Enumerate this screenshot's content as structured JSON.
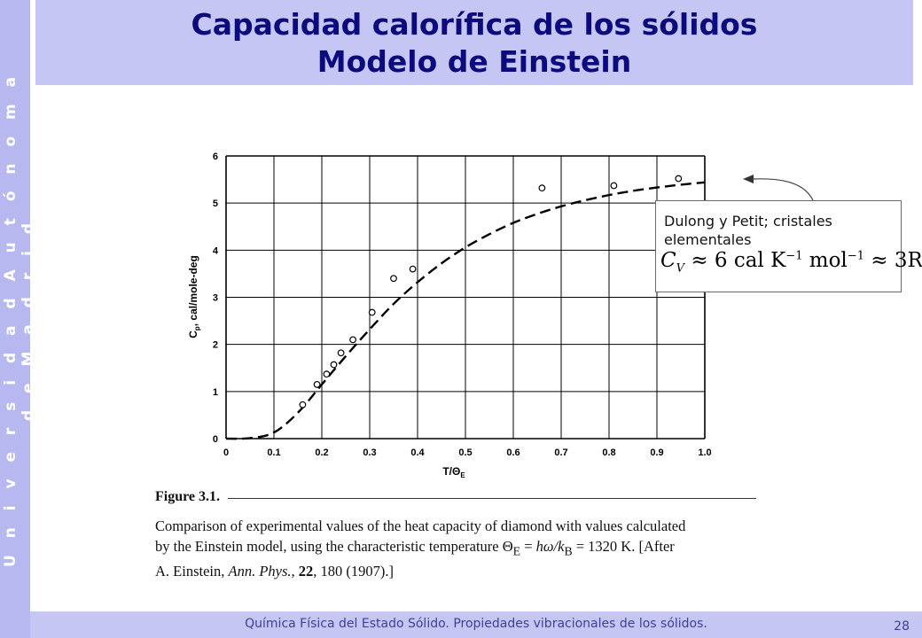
{
  "side_text": "U n i v e r s i d a d   A u t ó n o m a   d e   M a d r i d",
  "title": {
    "line1": "Capacidad calorífica de los sólidos",
    "line2": "Modelo de Einstein"
  },
  "footer": {
    "text": "Química Física del Estado Sólido. Propiedades vibracionales de los sólidos.",
    "page": "28"
  },
  "callout": {
    "line1": "Dulong y Petit; cristales",
    "line2": "elementales",
    "formula": {
      "cv": "C",
      "cv_sub": "V",
      "approx1": "≈ 6 cal K",
      "exp1": "−1",
      "mol": " mol",
      "exp2": "−1",
      "approx2": " ≈ 3R"
    }
  },
  "caption": {
    "figure": "Figure 3.1.",
    "text": "Comparison of experimental values of the heat capacity of diamond with values calculated by the Einstein model, using the characteristic temperature Θₑ = ħω/kₙ = 1320 K. [After A. Einstein, Ann. Phys., 22, 180 (1907).]",
    "l1": "Comparison of experimental values of the heat capacity of diamond with  values  calculated",
    "l2a": "by the Einstein model, using the characteristic temperature  Θ",
    "l2sub1": "E",
    "l2b": " = ",
    "l2c": "hω/k",
    "l2sub2": "B",
    "l2d": " = 1320 K. [After",
    "l3a": "A. Einstein, ",
    "l3b": "Ann. Phys.",
    "l3c": ", ",
    "l3d": "22",
    "l3e": ", 180 (1907).]"
  },
  "chart_data": {
    "type": "scatter",
    "xlabel": "T/Θ",
    "xlabel_sub": "E",
    "ylabel": "C",
    "ylabel_sub": "p",
    "ylabel_rest": ", cal/mole-deg",
    "xlim": [
      0,
      1.0
    ],
    "ylim": [
      0,
      6
    ],
    "grid": true,
    "x_ticks": [
      "0",
      "0.1",
      "0.2",
      "0.3",
      "0.4",
      "0.5",
      "0.6",
      "0.7",
      "0.8",
      "0.9",
      "1.0"
    ],
    "y_ticks": [
      "0",
      "1",
      "2",
      "3",
      "4",
      "5",
      "6"
    ],
    "series": [
      {
        "type": "scatter",
        "x": [
          0.16,
          0.19,
          0.21,
          0.225,
          0.24,
          0.265,
          0.305,
          0.35,
          0.39,
          0.66,
          0.81,
          0.945
        ],
        "y": [
          0.72,
          1.15,
          1.37,
          1.57,
          1.82,
          2.1,
          2.68,
          3.4,
          3.6,
          5.32,
          5.37,
          5.52
        ]
      },
      {
        "type": "line",
        "style": "dashed",
        "x": [
          0,
          0.05,
          0.1,
          0.15,
          0.2,
          0.25,
          0.3,
          0.35,
          0.4,
          0.45,
          0.5,
          0.55,
          0.6,
          0.65,
          0.7,
          0.75,
          0.8,
          0.85,
          0.9,
          0.95,
          1.0
        ],
        "y": [
          0.0,
          0.01,
          0.13,
          0.55,
          1.15,
          1.75,
          2.32,
          2.86,
          3.32,
          3.72,
          4.06,
          4.34,
          4.58,
          4.77,
          4.93,
          5.06,
          5.17,
          5.26,
          5.33,
          5.39,
          5.44
        ]
      }
    ]
  }
}
